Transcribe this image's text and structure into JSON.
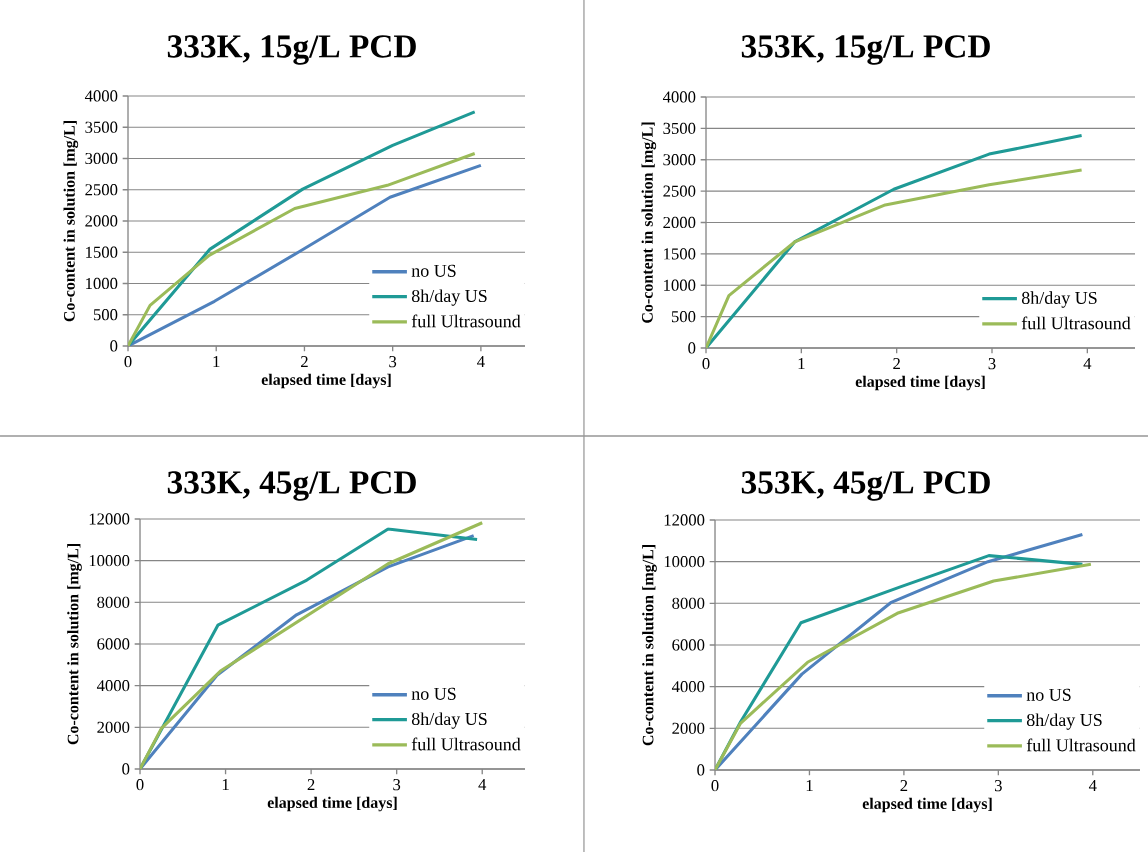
{
  "chart_data": [
    {
      "type": "line",
      "title": "333K, 15g/L PCD",
      "xlabel": "elapsed time [days]",
      "ylabel": "Co-content in solution [mg/L]",
      "xlim": [
        0,
        4.5
      ],
      "xticks": [
        0,
        1,
        2,
        3,
        4
      ],
      "ylim": [
        0,
        4000
      ],
      "yticks": [
        0,
        500,
        1000,
        1500,
        2000,
        2500,
        3000,
        3500,
        4000
      ],
      "grid": "y",
      "legend": "bottom right",
      "series": [
        {
          "name": "no US",
          "color": "#4f81bd",
          "x": [
            0,
            0.98,
            1.93,
            2.97,
            4.0
          ],
          "values": [
            0,
            715,
            1500,
            2380,
            2890
          ]
        },
        {
          "name": "8h/day US",
          "color": "#1f9a96",
          "x": [
            0,
            0.93,
            1.98,
            3.0,
            3.93
          ],
          "values": [
            0,
            1550,
            2510,
            3210,
            3745
          ]
        },
        {
          "name": "full Ultrasound",
          "color": "#9bbb59",
          "x": [
            0,
            0.25,
            0.92,
            1.89,
            2.94,
            3.93
          ],
          "values": [
            0,
            650,
            1450,
            2200,
            2570,
            3080
          ]
        }
      ]
    },
    {
      "type": "line",
      "title": "353K, 15g/L PCD",
      "xlabel": "elapsed time [days]",
      "ylabel": "Co-content in solution [mg/L]",
      "xlim": [
        0,
        4.5
      ],
      "xticks": [
        0,
        1,
        2,
        3,
        4
      ],
      "ylim": [
        0,
        4000
      ],
      "yticks": [
        0,
        500,
        1000,
        1500,
        2000,
        2500,
        3000,
        3500,
        4000
      ],
      "grid": "y",
      "legend": "bottom right",
      "series": [
        {
          "name": "8h/day US",
          "color": "#1f9a96",
          "x": [
            0,
            0.93,
            1.97,
            2.97,
            3.94
          ],
          "values": [
            0,
            1690,
            2530,
            3090,
            3385
          ]
        },
        {
          "name": "full Ultrasound",
          "color": "#9bbb59",
          "x": [
            0,
            0.24,
            0.93,
            1.88,
            2.97,
            3.94
          ],
          "values": [
            0,
            835,
            1690,
            2280,
            2600,
            2835
          ]
        }
      ]
    },
    {
      "type": "line",
      "title": "333K, 45g/L PCD",
      "xlabel": "elapsed time [days]",
      "ylabel": "Co-content in solution [mg/L]",
      "xlim": [
        0,
        4.5
      ],
      "xticks": [
        0,
        1,
        2,
        3,
        4
      ],
      "ylim": [
        0,
        12000
      ],
      "yticks": [
        0,
        2000,
        4000,
        6000,
        8000,
        10000,
        12000
      ],
      "grid": "y",
      "legend": "bottom right",
      "series": [
        {
          "name": "no US",
          "color": "#4f81bd",
          "x": [
            0,
            0.9,
            1.83,
            2.9,
            3.9
          ],
          "values": [
            0,
            4500,
            7400,
            9700,
            11200
          ]
        },
        {
          "name": "8h/day US",
          "color": "#1f9a96",
          "x": [
            0,
            0.91,
            1.95,
            2.9,
            3.94
          ],
          "values": [
            0,
            6900,
            9070,
            11520,
            11020
          ]
        },
        {
          "name": "full Ultrasound",
          "color": "#9bbb59",
          "x": [
            0,
            0.25,
            0.94,
            2.9,
            4.0
          ],
          "values": [
            0,
            1950,
            4700,
            9850,
            11820
          ]
        }
      ]
    },
    {
      "type": "line",
      "title": "353K, 45g/L PCD",
      "xlabel": "elapsed time [days]",
      "ylabel": "Co-content in solution [mg/L]",
      "xlim": [
        0,
        4.5
      ],
      "xticks": [
        0,
        1,
        2,
        3,
        4
      ],
      "ylim": [
        0,
        12000
      ],
      "yticks": [
        0,
        2000,
        4000,
        6000,
        8000,
        10000,
        12000
      ],
      "grid": "y",
      "legend": "bottom right",
      "series": [
        {
          "name": "no US",
          "color": "#4f81bd",
          "x": [
            0,
            0.92,
            1.86,
            2.89,
            3.89
          ],
          "values": [
            0,
            4600,
            8030,
            10000,
            11300
          ]
        },
        {
          "name": "8h/day US",
          "color": "#1f9a96",
          "x": [
            0,
            0.27,
            0.91,
            1.97,
            2.9,
            3.89
          ],
          "values": [
            0,
            2300,
            7070,
            8800,
            10290,
            9870
          ]
        },
        {
          "name": "full Ultrasound",
          "color": "#9bbb59",
          "x": [
            0,
            0.27,
            0.98,
            1.93,
            2.95,
            3.98
          ],
          "values": [
            0,
            2240,
            5170,
            7520,
            9070,
            9870
          ]
        }
      ]
    }
  ]
}
